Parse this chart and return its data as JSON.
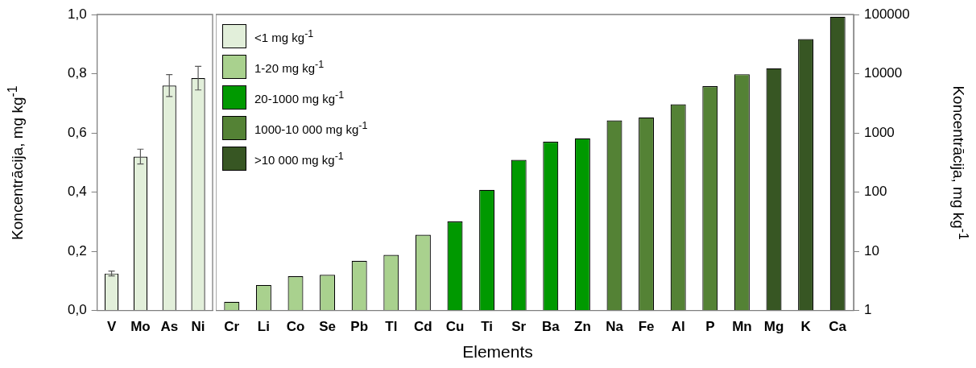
{
  "chart_data": [
    {
      "type": "bar",
      "ylabel": "Koncentrācija, mg kg$^{-1}$",
      "categories": [
        "V",
        "Mo",
        "As",
        "Ni"
      ],
      "values": [
        0.125,
        0.52,
        0.76,
        0.785
      ],
      "errors": [
        0.008,
        0.025,
        0.037,
        0.04
      ],
      "color": "#e2efda",
      "ylim": [
        0,
        1
      ],
      "yticks": [
        {
          "value": 0,
          "label": "0,0"
        },
        {
          "value": 0.2,
          "label": "0,2"
        },
        {
          "value": 0.4,
          "label": "0,4"
        },
        {
          "value": 0.6,
          "label": "0,6"
        },
        {
          "value": 0.8,
          "label": "0,8"
        },
        {
          "value": 1,
          "label": "1,0"
        }
      ]
    },
    {
      "type": "bar",
      "xlabel": "Elements",
      "y2label": "Koncentrācija, mg kg$^{-1}$",
      "categories": [
        "Cr",
        "Li",
        "Co",
        "Se",
        "Pb",
        "Tl",
        "Cd",
        "Cu",
        "Ti",
        "Sr",
        "Ba",
        "Zn",
        "Na",
        "Fe",
        "Al",
        "P",
        "Mn",
        "Mg",
        "K",
        "Ca"
      ],
      "log": "y2",
      "legend": "top left",
      "y2lim": [
        1,
        100000
      ],
      "y2ticks": [
        1,
        10,
        100,
        1000,
        10000,
        100000
      ],
      "series": [
        {
          "name": "<1 mg kg$^{-1}$",
          "color": "#e2efda",
          "axis": "y2",
          "values": [
            null,
            null,
            null,
            null,
            null,
            null,
            null,
            null,
            null,
            null,
            null,
            null,
            null,
            null,
            null,
            null,
            null,
            null,
            null,
            null
          ]
        },
        {
          "name": "1-20 mg kg$^{-1}$",
          "color": "#a9d18e",
          "axis": "y2",
          "values": [
            1.4,
            2.7,
            3.8,
            4,
            6.9,
            8.7,
            19,
            null,
            null,
            null,
            null,
            null,
            null,
            null,
            null,
            null,
            null,
            null,
            null,
            null
          ]
        },
        {
          "name": "20-1000 mg kg$^{-1}$",
          "color": "#009900",
          "axis": "y2",
          "values": [
            null,
            null,
            null,
            null,
            null,
            null,
            null,
            32,
            109,
            350,
            710,
            810,
            null,
            null,
            null,
            null,
            null,
            null,
            null,
            null
          ]
        },
        {
          "name": "1000-10 000 mg kg$^{-1}$",
          "color": "#548235",
          "axis": "y2",
          "values": [
            null,
            null,
            null,
            null,
            null,
            null,
            null,
            null,
            null,
            null,
            null,
            null,
            1630,
            1830,
            3040,
            6140,
            9800,
            null,
            null,
            null
          ]
        },
        {
          "name": ">10 000 mg kg$^{-1}$",
          "color": "#375623",
          "axis": "y2",
          "values": [
            null,
            null,
            null,
            null,
            null,
            null,
            null,
            null,
            null,
            null,
            null,
            null,
            null,
            null,
            null,
            null,
            null,
            12300,
            38400,
            91700
          ]
        }
      ]
    }
  ]
}
